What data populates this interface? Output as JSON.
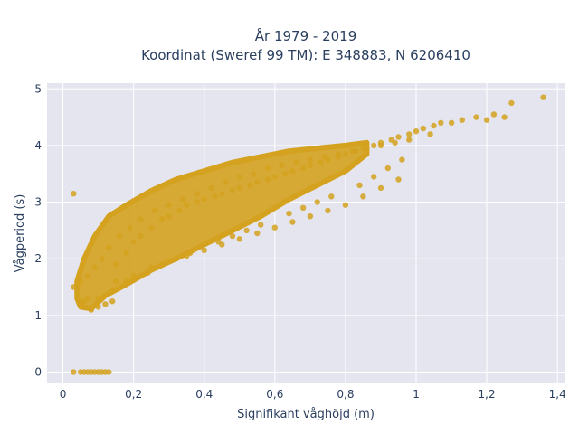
{
  "chart_data": {
    "type": "scatter",
    "title": "År 1979 - 2019",
    "subtitle": "Koordinat (Sweref 99 TM): E 348883, N 6206410",
    "xlabel": "Signifikant våghöjd (m)",
    "ylabel": "Vågperiod (s)",
    "xlim": [
      -0.045,
      1.42
    ],
    "ylim": [
      -0.2,
      5.1
    ],
    "x_ticks": [
      0,
      0.2,
      0.4,
      0.6,
      0.8,
      1,
      1.2,
      1.4
    ],
    "x_tick_labels": [
      "0",
      "0,2",
      "0,4",
      "0,6",
      "0,8",
      "1",
      "1,2",
      "1,4"
    ],
    "y_ticks": [
      0,
      1,
      2,
      3,
      4,
      5
    ],
    "y_tick_labels": [
      "0",
      "1",
      "2",
      "3",
      "4",
      "5"
    ],
    "grid": true,
    "legend": "none",
    "series": [
      {
        "marker_color": "#d4a21f",
        "x": [
          0.03,
          0.05,
          0.06,
          0.07,
          0.08,
          0.09,
          0.1,
          0.11,
          0.12,
          0.13,
          0.03,
          0.04,
          0.05,
          0.06,
          0.07,
          0.08,
          0.1,
          0.12,
          0.14,
          0.15,
          0.18,
          0.2,
          0.22,
          0.25,
          0.28,
          0.3,
          0.33,
          0.35,
          0.38,
          0.4,
          0.43,
          0.45,
          0.48,
          0.5,
          0.53,
          0.55,
          0.58,
          0.6,
          0.63,
          0.65,
          0.68,
          0.7,
          0.73,
          0.75,
          0.78,
          0.8,
          0.83,
          0.85,
          0.88,
          0.9,
          0.93,
          0.95,
          0.98,
          1.0,
          1.02,
          1.05,
          1.07,
          1.1,
          1.13,
          1.17,
          1.2,
          1.22,
          1.25,
          1.27,
          1.36,
          0.03,
          0.05,
          0.07,
          0.09,
          0.11,
          0.13,
          0.16,
          0.19,
          0.22,
          0.26,
          0.3,
          0.34,
          0.38,
          0.42,
          0.46,
          0.5,
          0.54,
          0.58,
          0.62,
          0.66,
          0.7,
          0.74,
          0.78,
          0.82,
          0.86,
          0.9,
          0.94,
          0.98,
          0.15,
          0.2,
          0.25,
          0.3,
          0.35,
          0.4,
          0.45,
          0.5,
          0.55,
          0.6,
          0.65,
          0.7,
          0.75,
          0.8,
          0.85,
          0.9,
          0.95,
          0.1,
          0.14,
          0.18,
          0.24,
          0.28,
          0.32,
          0.36,
          0.44,
          0.48,
          0.52,
          0.56,
          0.64,
          0.68,
          0.72,
          0.76,
          0.84,
          0.88,
          0.92,
          0.96,
          1.04
        ],
        "y": [
          0,
          0,
          0,
          0,
          0,
          0,
          0,
          0,
          0,
          0,
          3.15,
          1.55,
          1.2,
          1.25,
          1.3,
          1.1,
          1.15,
          1.2,
          1.25,
          1.9,
          2.1,
          2.3,
          2.4,
          2.55,
          2.7,
          2.75,
          2.85,
          2.95,
          3.0,
          3.05,
          3.1,
          3.15,
          3.2,
          3.25,
          3.3,
          3.35,
          3.4,
          3.45,
          3.5,
          3.55,
          3.6,
          3.65,
          3.7,
          3.75,
          3.8,
          3.85,
          3.9,
          3.95,
          4.0,
          4.05,
          4.1,
          4.15,
          4.2,
          4.25,
          4.3,
          4.35,
          4.4,
          4.4,
          4.45,
          4.5,
          4.45,
          4.55,
          4.5,
          4.75,
          4.85,
          1.5,
          1.6,
          1.7,
          1.85,
          2.0,
          2.2,
          2.4,
          2.55,
          2.7,
          2.85,
          2.95,
          3.05,
          3.15,
          3.25,
          3.35,
          3.45,
          3.5,
          3.6,
          3.65,
          3.7,
          3.75,
          3.8,
          3.85,
          3.9,
          3.95,
          4.0,
          4.05,
          4.1,
          1.6,
          1.7,
          1.85,
          1.95,
          2.05,
          2.15,
          2.25,
          2.35,
          2.45,
          2.55,
          2.65,
          2.75,
          2.85,
          2.95,
          3.1,
          3.25,
          3.4,
          1.3,
          1.45,
          1.6,
          1.75,
          1.9,
          2.0,
          2.1,
          2.3,
          2.4,
          2.5,
          2.6,
          2.8,
          2.9,
          3.0,
          3.1,
          3.3,
          3.45,
          3.6,
          3.75,
          4.2
        ]
      }
    ]
  }
}
